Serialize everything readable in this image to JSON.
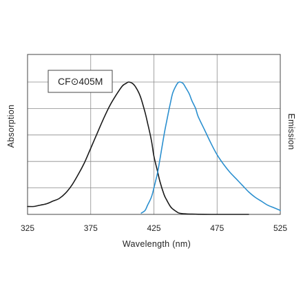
{
  "chart_data": {
    "type": "line",
    "title": "",
    "legend_box_label": "CF⊙405M",
    "xlabel": "Wavelength (nm)",
    "ylabel_left": "Absorption",
    "ylabel_right": "Emission",
    "xlim": [
      325,
      525
    ],
    "ylim": [
      0,
      1.0
    ],
    "xticks": [
      325,
      375,
      425,
      475,
      525
    ],
    "xtick_labels": [
      "325",
      "375",
      "425",
      "475",
      "525"
    ],
    "yticks_hidden": [
      0.2,
      0.4,
      0.6,
      0.8,
      1.0
    ],
    "grid": true,
    "legend_position": "top-left",
    "series": [
      {
        "role": "absorption",
        "color": "#1a1a1a",
        "x": [
          325,
          330,
          335,
          340,
          345,
          350,
          355,
          360,
          365,
          370,
          375,
          380,
          385,
          390,
          395,
          400,
          403,
          405,
          408,
          410,
          413,
          415,
          418,
          420,
          423,
          425,
          428,
          430,
          433,
          435,
          438,
          440,
          443,
          445,
          450,
          455,
          460,
          470,
          480,
          490,
          500
        ],
        "y": [
          0.06,
          0.06,
          0.07,
          0.08,
          0.1,
          0.12,
          0.16,
          0.22,
          0.3,
          0.39,
          0.5,
          0.61,
          0.72,
          0.82,
          0.9,
          0.97,
          0.99,
          1.0,
          0.99,
          0.97,
          0.92,
          0.87,
          0.77,
          0.69,
          0.56,
          0.44,
          0.32,
          0.24,
          0.15,
          0.11,
          0.06,
          0.04,
          0.02,
          0.01,
          0.004,
          0.002,
          0.001,
          0.0,
          0.0,
          0.0,
          0.0
        ]
      },
      {
        "role": "emission",
        "color": "#2a8fcf",
        "x": [
          415,
          418,
          420,
          423,
          425,
          428,
          430,
          433,
          435,
          438,
          440,
          443,
          445,
          448,
          450,
          453,
          455,
          458,
          460,
          465,
          470,
          475,
          480,
          485,
          490,
          495,
          500,
          505,
          510,
          515,
          520,
          525
        ],
        "y": [
          0.01,
          0.03,
          0.07,
          0.13,
          0.2,
          0.32,
          0.43,
          0.6,
          0.7,
          0.84,
          0.92,
          0.98,
          1.0,
          0.99,
          0.96,
          0.91,
          0.86,
          0.8,
          0.74,
          0.64,
          0.54,
          0.45,
          0.38,
          0.32,
          0.27,
          0.22,
          0.17,
          0.13,
          0.1,
          0.07,
          0.05,
          0.03
        ]
      }
    ]
  }
}
